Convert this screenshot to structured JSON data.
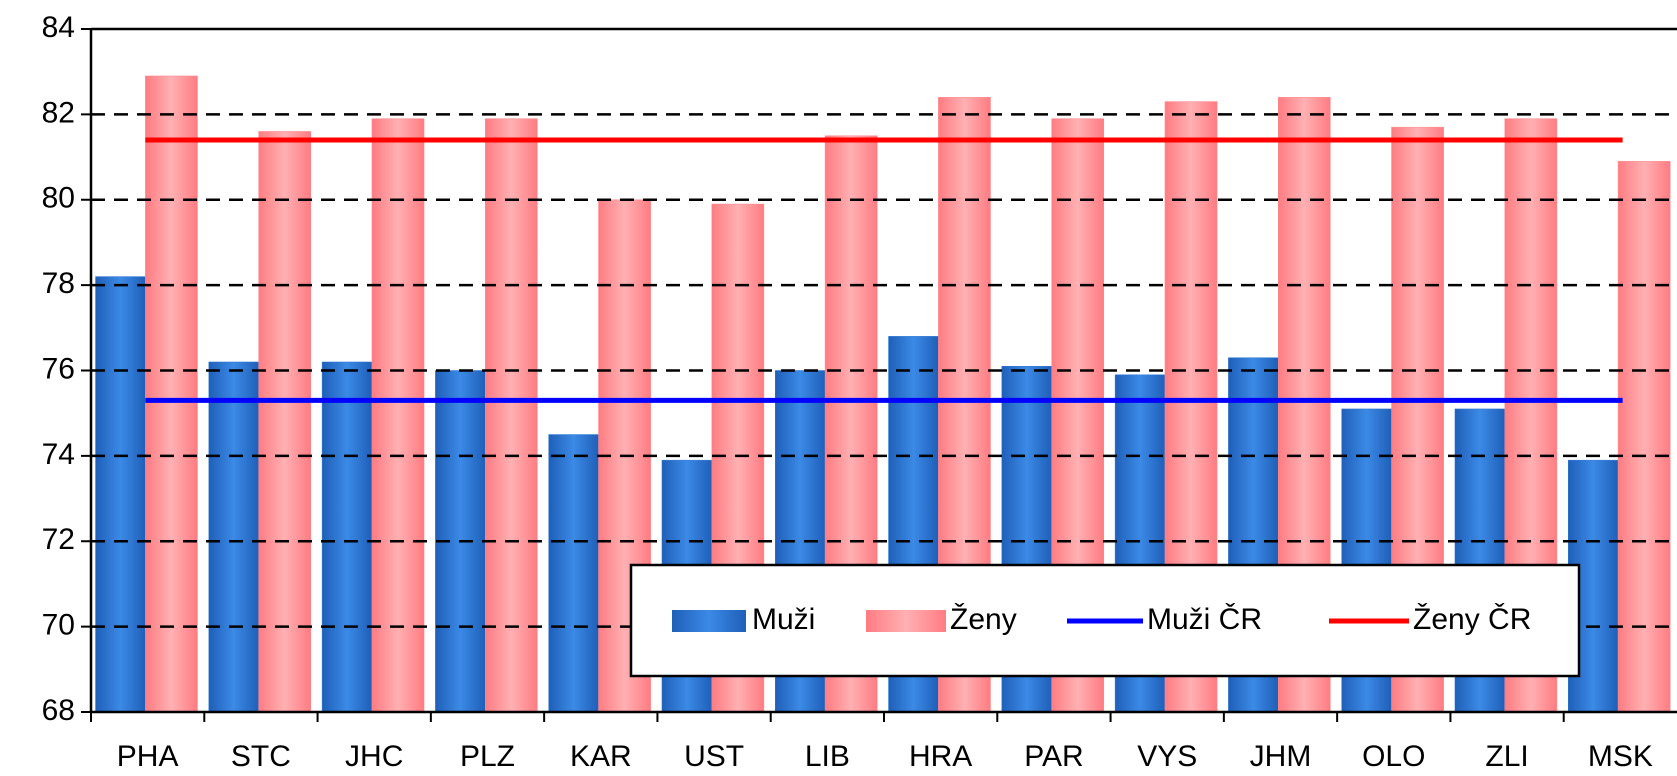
{
  "chart_data": {
    "type": "bar",
    "categories": [
      "PHA",
      "STC",
      "JHC",
      "PLZ",
      "KAR",
      "UST",
      "LIB",
      "HRA",
      "PAR",
      "VYS",
      "JHM",
      "OLO",
      "ZLI",
      "MSK"
    ],
    "series": [
      {
        "name": "Muži",
        "color": "#2f7ad6",
        "values": [
          78.2,
          76.2,
          76.2,
          76.0,
          74.5,
          73.9,
          76.0,
          76.8,
          76.1,
          75.9,
          76.3,
          75.1,
          75.1,
          73.9
        ]
      },
      {
        "name": "Ženy",
        "color": "#ff8a8f",
        "values": [
          82.9,
          81.6,
          81.9,
          81.9,
          80.0,
          79.9,
          81.5,
          82.4,
          81.9,
          82.3,
          82.4,
          81.7,
          81.9,
          80.9
        ]
      }
    ],
    "reference_lines": [
      {
        "name": "Muži ČR",
        "color": "#0000ff",
        "value": 75.3
      },
      {
        "name": "Ženy ČR",
        "color": "#ff0000",
        "value": 81.4
      }
    ],
    "ylim": [
      68,
      84
    ],
    "yticks": [
      68,
      70,
      72,
      74,
      76,
      78,
      80,
      82,
      84
    ],
    "grid": true
  }
}
